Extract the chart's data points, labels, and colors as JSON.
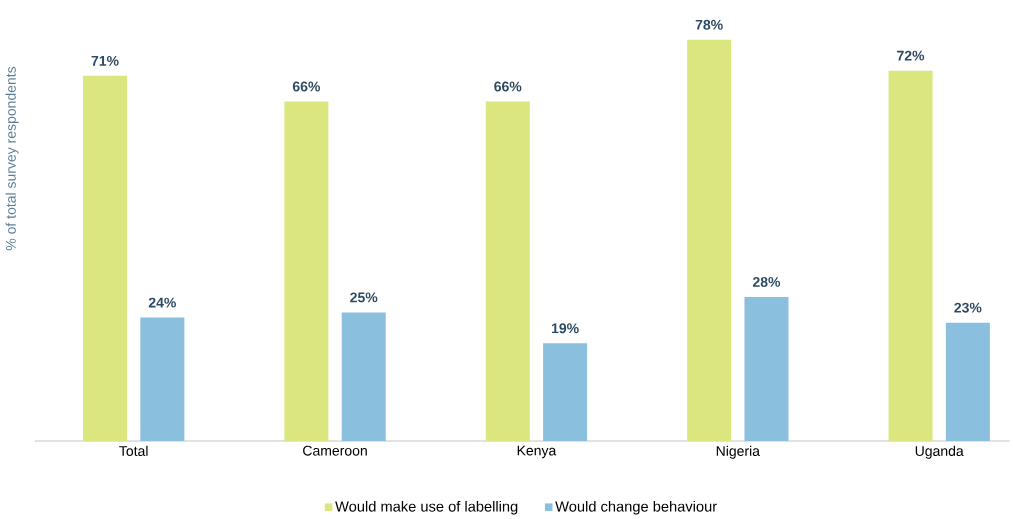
{
  "chart_data": {
    "type": "bar",
    "ylabel": "% of total survey respondents",
    "categories": [
      "Total",
      "Cameroon",
      "Kenya",
      "Nigeria",
      "Uganda"
    ],
    "series": [
      {
        "name": "Would make use of labelling",
        "color": "#dce67e",
        "values": [
          71,
          66,
          66,
          78,
          72
        ],
        "value_labels": [
          "71%",
          "66%",
          "66%",
          "78%",
          "72%"
        ]
      },
      {
        "name": "Would change behaviour",
        "color": "#8bbfde",
        "values": [
          24,
          25,
          19,
          28,
          23
        ],
        "value_labels": [
          "24%",
          "25%",
          "19%",
          "28%",
          "23%"
        ]
      }
    ],
    "legend": "bottom"
  }
}
